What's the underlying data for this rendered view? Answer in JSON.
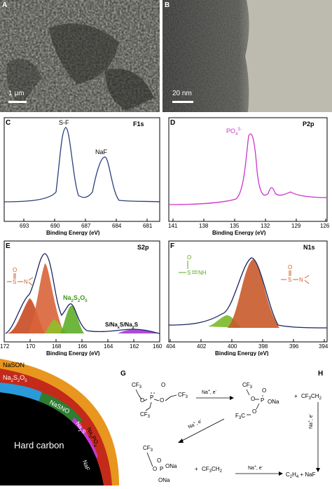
{
  "panels": {
    "A": {
      "label": "A",
      "scale": "1 μm"
    },
    "B": {
      "label": "B",
      "scale": "20 nm"
    },
    "C": {
      "label": "C",
      "element": "F1s",
      "peaks": [
        "S-F",
        "NaF"
      ],
      "xlabel": "Binding Energy (eV)",
      "ticks": [
        "693",
        "690",
        "687",
        "684",
        "681"
      ]
    },
    "D": {
      "label": "D",
      "element": "P2p",
      "peak": "PO",
      "peak_sub": "4",
      "peak_sup": "3-",
      "xlabel": "Binding Energy (eV)",
      "ticks": [
        "141",
        "138",
        "135",
        "132",
        "129",
        "126"
      ]
    },
    "E": {
      "label": "E",
      "element": "S2p",
      "peak_na": "Na",
      "peak_2a": "2",
      "peak_s": "S",
      "peak_2b": "2",
      "peak_o": "O",
      "peak_5": "5",
      "peak2": "S/Na",
      "peak2_x": "x",
      "peak2_rest": "S/Na",
      "peak2_2": "2",
      "peak2_s": "S",
      "xlabel": "Binding Energy (eV)",
      "ticks": [
        "172",
        "170",
        "168",
        "166",
        "164",
        "162",
        "160"
      ],
      "chem_s": "S",
      "chem_n": "N",
      "chem_o": "O"
    },
    "F": {
      "label": "F",
      "element": "N1s",
      "xlabel": "Binding Energy (eV)",
      "ticks": [
        "404",
        "402",
        "400",
        "398",
        "396",
        "394"
      ],
      "chem_o": "O",
      "chem_s": "S",
      "chem_nh": "NH",
      "chem_n": "N"
    },
    "G": {
      "label": "G"
    },
    "H": {
      "label": "H"
    }
  },
  "schematic": {
    "core": "Hard carbon",
    "layers": [
      "NaSON",
      "Na",
      "2",
      "S",
      "2",
      "O",
      "5",
      "NaSNO",
      "Na",
      "2",
      "S",
      "Na",
      "3",
      "PO",
      "4",
      "NaF"
    ]
  },
  "reaction": {
    "cf3": "CF",
    "sub3": "3",
    "o": "O",
    "p": "P",
    "ona": "ONa",
    "f3c": "F",
    "f3c_sub": "3",
    "f3c_c": "C",
    "step1": "Na",
    "step1_sup": "+",
    "step1_rest": ", e",
    "step1_minus": "-",
    "radical": "CF",
    "radical_sub": "3",
    "radical_rest": "CH",
    "radical_sub2": "2",
    "plus": "+",
    "product_c": "C",
    "product_sub1": "2",
    "product_h": "H",
    "product_sub2": "4",
    "product_rest": " + NaF"
  }
}
